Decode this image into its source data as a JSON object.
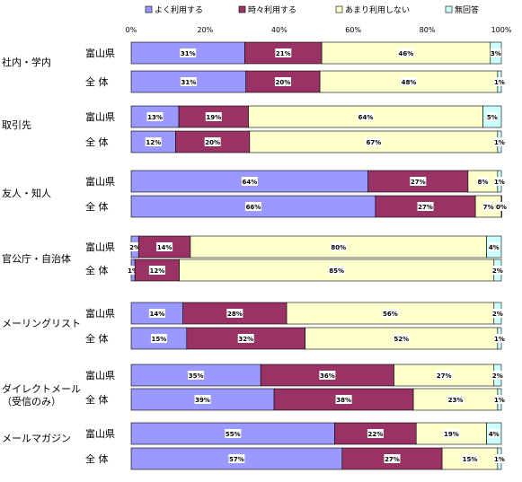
{
  "chart_data": {
    "type": "bar",
    "orientation": "horizontal",
    "stacked": true,
    "legend_position": "top",
    "xlim": [
      0,
      100
    ],
    "x_ticks": [
      "0%",
      "20%",
      "40%",
      "60%",
      "80%",
      "100%"
    ],
    "series": [
      {
        "name": "よく利用する",
        "color": "#9999ff"
      },
      {
        "name": "時々利用する",
        "color": "#993366"
      },
      {
        "name": "あまり利用しない",
        "color": "#ffffcc"
      },
      {
        "name": "無回答",
        "color": "#ccffff"
      }
    ],
    "groups": [
      {
        "label": "社内・学内",
        "rows": [
          {
            "region": "富山県",
            "values": [
              31,
              21,
              46,
              3
            ]
          },
          {
            "region": "全 体",
            "values": [
              31,
              20,
              48,
              1
            ]
          }
        ]
      },
      {
        "label": "取引先",
        "rows": [
          {
            "region": "富山県",
            "values": [
              13,
              19,
              64,
              5
            ]
          },
          {
            "region": "全 体",
            "values": [
              12,
              20,
              67,
              1
            ]
          }
        ]
      },
      {
        "label": "友人・知人",
        "rows": [
          {
            "region": "富山県",
            "values": [
              64,
              27,
              8,
              1
            ]
          },
          {
            "region": "全 体",
            "values": [
              66,
              27,
              7,
              0
            ]
          }
        ]
      },
      {
        "label": "官公庁・自治体",
        "rows": [
          {
            "region": "富山県",
            "values": [
              2,
              14,
              80,
              4
            ]
          },
          {
            "region": "全 体",
            "values": [
              1,
              12,
              85,
              2
            ]
          }
        ]
      },
      {
        "label": "メーリングリスト",
        "rows": [
          {
            "region": "富山県",
            "values": [
              14,
              28,
              56,
              2
            ]
          },
          {
            "region": "全 体",
            "values": [
              15,
              32,
              52,
              1
            ]
          }
        ]
      },
      {
        "label": "ダイレクトメール（受信のみ）",
        "label_lines": [
          "ダイレクトメール",
          "（受信のみ）"
        ],
        "rows": [
          {
            "region": "富山県",
            "values": [
              35,
              36,
              27,
              2
            ]
          },
          {
            "region": "全 体",
            "values": [
              39,
              38,
              23,
              1
            ]
          }
        ]
      },
      {
        "label": "メールマガジン",
        "rows": [
          {
            "region": "富山県",
            "values": [
              55,
              22,
              19,
              4
            ]
          },
          {
            "region": "全 体",
            "values": [
              57,
              27,
              15,
              1
            ]
          }
        ]
      }
    ]
  }
}
